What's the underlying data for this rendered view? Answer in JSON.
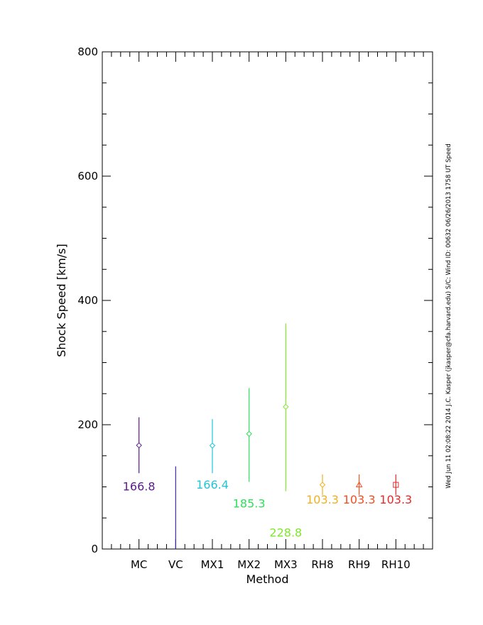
{
  "chart_data": {
    "type": "scatter",
    "xlabel": "Method",
    "ylabel": "Shock Speed [km/s]",
    "ylim": [
      0,
      800
    ],
    "yticks": [
      0,
      200,
      400,
      600,
      800
    ],
    "yminor_step": 50,
    "categories": [
      "MC",
      "VC",
      "MX1",
      "MX2",
      "MX3",
      "RH8",
      "RH9",
      "RH10"
    ],
    "points": [
      {
        "method": "MC",
        "value": 166.8,
        "low": 122,
        "high": 212,
        "marker": "diamond",
        "color": "#5a1a8c",
        "label": "166.8",
        "label_y": 101
      },
      {
        "method": "VC",
        "value": null,
        "low": 0,
        "high": 133,
        "marker": "none",
        "color": "#3a2aa8",
        "label": "",
        "label_y": null
      },
      {
        "method": "MX1",
        "value": 166.4,
        "low": 122,
        "high": 209,
        "marker": "diamond",
        "color": "#22c4d4",
        "label": "166.4",
        "label_y": 104
      },
      {
        "method": "MX2",
        "value": 185.3,
        "low": 108,
        "high": 259,
        "marker": "diamond",
        "color": "#2ee05a",
        "label": "185.3",
        "label_y": 74
      },
      {
        "method": "MX3",
        "value": 228.8,
        "low": 93,
        "high": 363,
        "marker": "diamond",
        "color": "#7ee82a",
        "label": "228.8",
        "label_y": 27
      },
      {
        "method": "RH8",
        "value": 103.3,
        "low": 87,
        "high": 120,
        "marker": "diamond",
        "color": "#f0b020",
        "label": "103.3",
        "label_y": 80
      },
      {
        "method": "RH9",
        "value": 103.3,
        "low": 87,
        "high": 120,
        "marker": "triangle",
        "color": "#f05020",
        "label": "103.3",
        "label_y": 80
      },
      {
        "method": "RH10",
        "value": 103.3,
        "low": 87,
        "high": 120,
        "marker": "square",
        "color": "#e82a2a",
        "label": "103.3",
        "label_y": 80
      }
    ]
  },
  "side_note": "Wed Jun 11 02:08:22 2014   J.C. Kasper (jkasper@cfa.harvard.edu)   S/C: Wind  ID: 00632  06/26/2013   1758 UT Speed"
}
